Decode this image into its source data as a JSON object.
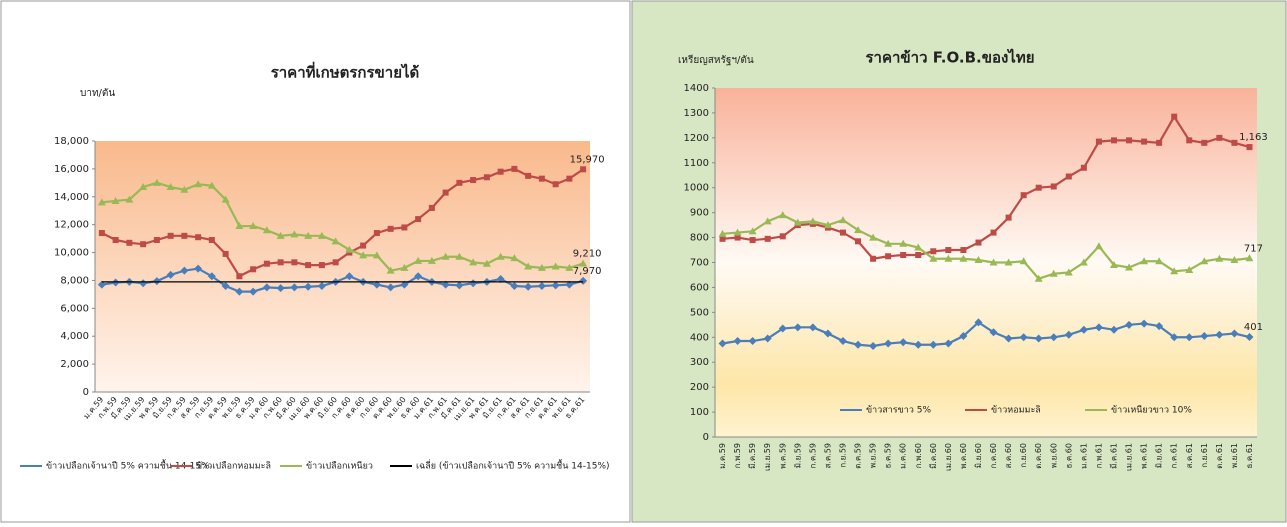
{
  "chart_data": [
    {
      "type": "line",
      "title": "ราคาที่เกษตรกรขายได้",
      "y_label": "บาท/ตัน",
      "categories": [
        "ม.ค.59",
        "ก.พ.59",
        "มี.ค.59",
        "เม.ย.59",
        "พ.ค.59",
        "มิ.ย.59",
        "ก.ค.59",
        "ส.ค.59",
        "ก.ย.59",
        "ต.ค.59",
        "พ.ย.59",
        "ธ.ค.59",
        "ม.ค.60",
        "ก.พ.60",
        "มี.ค.60",
        "เม.ย.60",
        "พ.ค.60",
        "มิ.ย.60",
        "ก.ค.60",
        "ส.ค.60",
        "ก.ย.60",
        "ต.ค.60",
        "พ.ย.60",
        "ธ.ค.60",
        "ม.ค.61",
        "ก.พ.61",
        "มี.ค.61",
        "เม.ย.61",
        "พ.ค.61",
        "มิ.ย.61",
        "ก.ค.61",
        "ส.ค.61",
        "ก.ย.61",
        "ต.ค.61",
        "พ.ย.61",
        "ธ.ค.61"
      ],
      "ylim": [
        0,
        18000
      ],
      "yticks": [
        0,
        {
          "value": 2000,
          "label": "2,000"
        },
        {
          "value": 4000,
          "label": "4,000"
        },
        {
          "value": 6000,
          "label": "6,000"
        },
        {
          "value": 8000,
          "label": "8,000"
        },
        {
          "value": 10000,
          "label": "10,000"
        },
        {
          "value": 12000,
          "label": "12,000"
        },
        {
          "value": 14000,
          "label": "14,000"
        },
        {
          "value": 16000,
          "label": "16,000"
        },
        {
          "value": 18000,
          "label": "18,000"
        }
      ],
      "legend": "bottom",
      "series": [
        {
          "name": "ข้าวเปลือกเจ้านาปี 5% ความชื้น 14-15%",
          "color": "#4a7ebb",
          "marker": "diamond",
          "values": [
            7700,
            7850,
            7900,
            7800,
            7950,
            8400,
            8700,
            8850,
            8300,
            7600,
            7200,
            7200,
            7500,
            7450,
            7500,
            7550,
            7600,
            7900,
            8300,
            7900,
            7700,
            7500,
            7700,
            8300,
            7900,
            7700,
            7650,
            7800,
            7900,
            8100,
            7600,
            7550,
            7600,
            7650,
            7700,
            7970
          ],
          "value_labels": {
            "35": "7,970"
          }
        },
        {
          "name": "ข้าวเปลือกหอมมะลิ",
          "color": "#be4b48",
          "marker": "square",
          "values": [
            11400,
            10900,
            10700,
            10600,
            10900,
            11200,
            11200,
            11100,
            10900,
            9900,
            8300,
            8800,
            9200,
            9300,
            9300,
            9100,
            9100,
            9300,
            10000,
            10500,
            11400,
            11700,
            11800,
            12400,
            13200,
            14300,
            15000,
            15200,
            15400,
            15800,
            16000,
            15500,
            15300,
            14900,
            15300,
            15970
          ],
          "value_labels": {
            "35": "15,970"
          }
        },
        {
          "name": "ข้าวเปลือกเหนียว",
          "color": "#98b954",
          "marker": "triangle",
          "values": [
            13600,
            13700,
            13800,
            14700,
            15000,
            14700,
            14500,
            14900,
            14800,
            13800,
            11900,
            11900,
            11600,
            11200,
            11300,
            11200,
            11200,
            10800,
            10200,
            9800,
            9800,
            8700,
            8900,
            9400,
            9400,
            9700,
            9700,
            9300,
            9200,
            9700,
            9600,
            9000,
            8900,
            9000,
            8900,
            9210
          ],
          "value_labels": {
            "35": "9,210"
          }
        },
        {
          "name": "เฉลี่ย (ข้าวเปลือกเจ้านาปี 5% ความชื้น 14-15%)",
          "color": "#000000",
          "marker": "none",
          "values": [
            7900,
            7900,
            7900,
            7900,
            7900,
            7900,
            7900,
            7900,
            7900,
            7900,
            7900,
            7900,
            7900,
            7900,
            7900,
            7900,
            7900,
            7900,
            7900,
            7900,
            7900,
            7900,
            7900,
            7900,
            7900,
            7900,
            7900,
            7900,
            7900,
            7900,
            7900,
            7900,
            7900,
            7900,
            7900,
            7900
          ]
        }
      ]
    },
    {
      "type": "line",
      "title": "ราคาข้าว F.O.B.ของไทย",
      "y_label": "เหรียญสหรัฐฯ/ตัน",
      "categories": [
        "ม.ค.59",
        "ก.พ.59",
        "มี.ค.59",
        "เม.ย.59",
        "พ.ค.59",
        "มิ.ย.59",
        "ก.ค.59",
        "ส.ค.59",
        "ก.ย.59",
        "ต.ค.59",
        "พ.ย.59",
        "ธ.ค.59",
        "ม.ค.60",
        "ก.พ.60",
        "มี.ค.60",
        "เม.ย.60",
        "พ.ค.60",
        "มิ.ย.60",
        "ก.ค.60",
        "ส.ค.60",
        "ก.ย.60",
        "ต.ค.60",
        "พ.ย.60",
        "ธ.ค.60",
        "ม.ค.61",
        "ก.พ.61",
        "มี.ค.61",
        "เม.ย.61",
        "พ.ค.61",
        "มิ.ย.61",
        "ก.ค.61",
        "ส.ค.61",
        "ก.ย.61",
        "ต.ค.61",
        "พ.ย.61",
        "ธ.ค.61"
      ],
      "ylim": [
        0,
        1400
      ],
      "yticks": [
        0,
        100,
        200,
        300,
        400,
        500,
        600,
        700,
        800,
        900,
        1000,
        1100,
        1200,
        1300,
        1400
      ],
      "legend": "inside-bottom",
      "series": [
        {
          "name": "ข้าวสารขาว 5%",
          "color": "#4a7ebb",
          "marker": "diamond",
          "values": [
            375,
            385,
            385,
            395,
            435,
            440,
            440,
            415,
            385,
            370,
            365,
            375,
            380,
            370,
            370,
            375,
            405,
            460,
            420,
            395,
            400,
            395,
            400,
            410,
            430,
            440,
            430,
            450,
            455,
            445,
            400,
            400,
            405,
            410,
            415,
            401
          ],
          "value_labels": {
            "35": "401"
          }
        },
        {
          "name": "ข้าวหอมมะลิ",
          "color": "#be4b48",
          "marker": "square",
          "values": [
            795,
            800,
            790,
            795,
            805,
            850,
            855,
            840,
            820,
            785,
            715,
            725,
            730,
            730,
            745,
            750,
            750,
            780,
            820,
            880,
            970,
            1000,
            1005,
            1045,
            1080,
            1185,
            1190,
            1190,
            1185,
            1180,
            1285,
            1190,
            1180,
            1200,
            1180,
            1163
          ],
          "value_labels": {
            "35": "1,163"
          }
        },
        {
          "name": "ข้าวเหนียวขาว 10%",
          "color": "#98b954",
          "marker": "triangle",
          "values": [
            815,
            820,
            825,
            865,
            890,
            860,
            865,
            850,
            870,
            830,
            800,
            775,
            775,
            760,
            715,
            715,
            715,
            710,
            700,
            700,
            705,
            635,
            655,
            660,
            700,
            765,
            690,
            680,
            705,
            705,
            665,
            670,
            705,
            715,
            710,
            717
          ],
          "value_labels": {
            "35": "717"
          }
        }
      ]
    }
  ]
}
